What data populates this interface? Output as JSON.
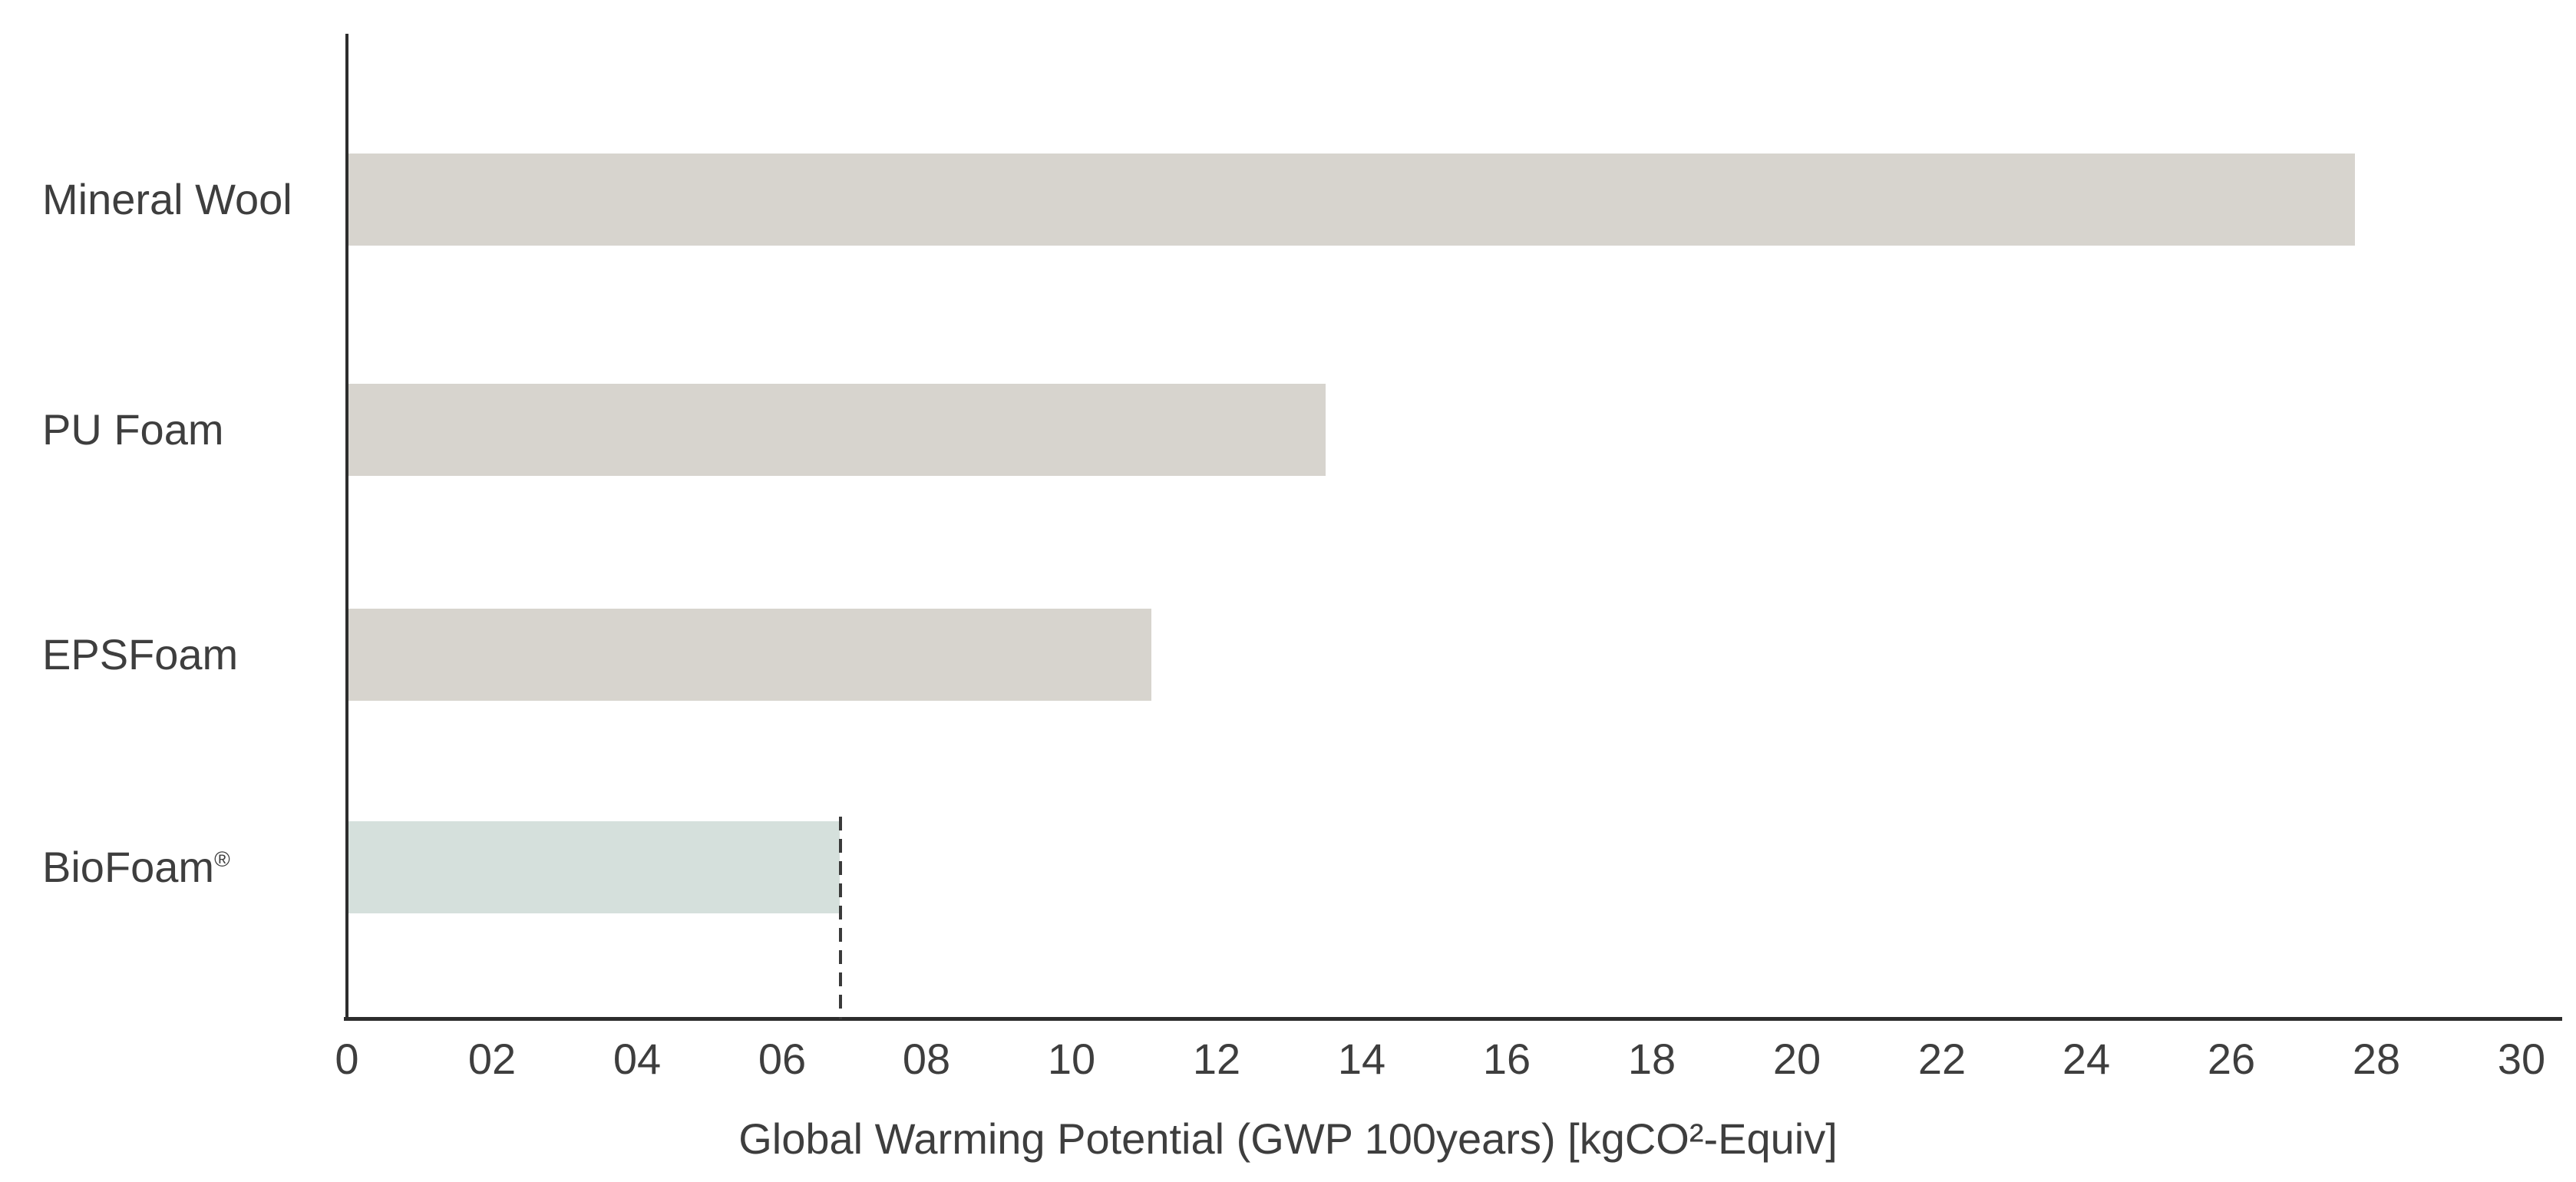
{
  "chart_data": {
    "type": "bar",
    "orientation": "horizontal",
    "title": "",
    "categories": [
      "Mineral Wool",
      "PU Foam",
      "EPSFoam",
      "BioFoam®"
    ],
    "values": [
      27.7,
      13.5,
      11.1,
      6.8
    ],
    "highlight_index": 3,
    "xlabel": "Global Warming Potential (GWP 100years) [kgCO²-Equiv]",
    "xlim": [
      0,
      30
    ],
    "xtick_values": [
      0,
      2,
      4,
      6,
      8,
      10,
      12,
      14,
      16,
      18,
      20,
      22,
      24,
      26,
      28,
      30
    ],
    "xtick_labels": [
      "0",
      "02",
      "04",
      "06",
      "08",
      "10",
      "12",
      "14",
      "16",
      "18",
      "20",
      "22",
      "24",
      "26",
      "28",
      "30"
    ],
    "reference_line": {
      "value": 6.8,
      "style": "dashed"
    },
    "grid": false,
    "legend": "none",
    "colors": {
      "bar_default": "#d7d4ce",
      "bar_highlight": "#d5e0dc",
      "axis": "#2d2d2d",
      "text": "#3e3e3e",
      "reference": "#3a3a3a"
    }
  }
}
